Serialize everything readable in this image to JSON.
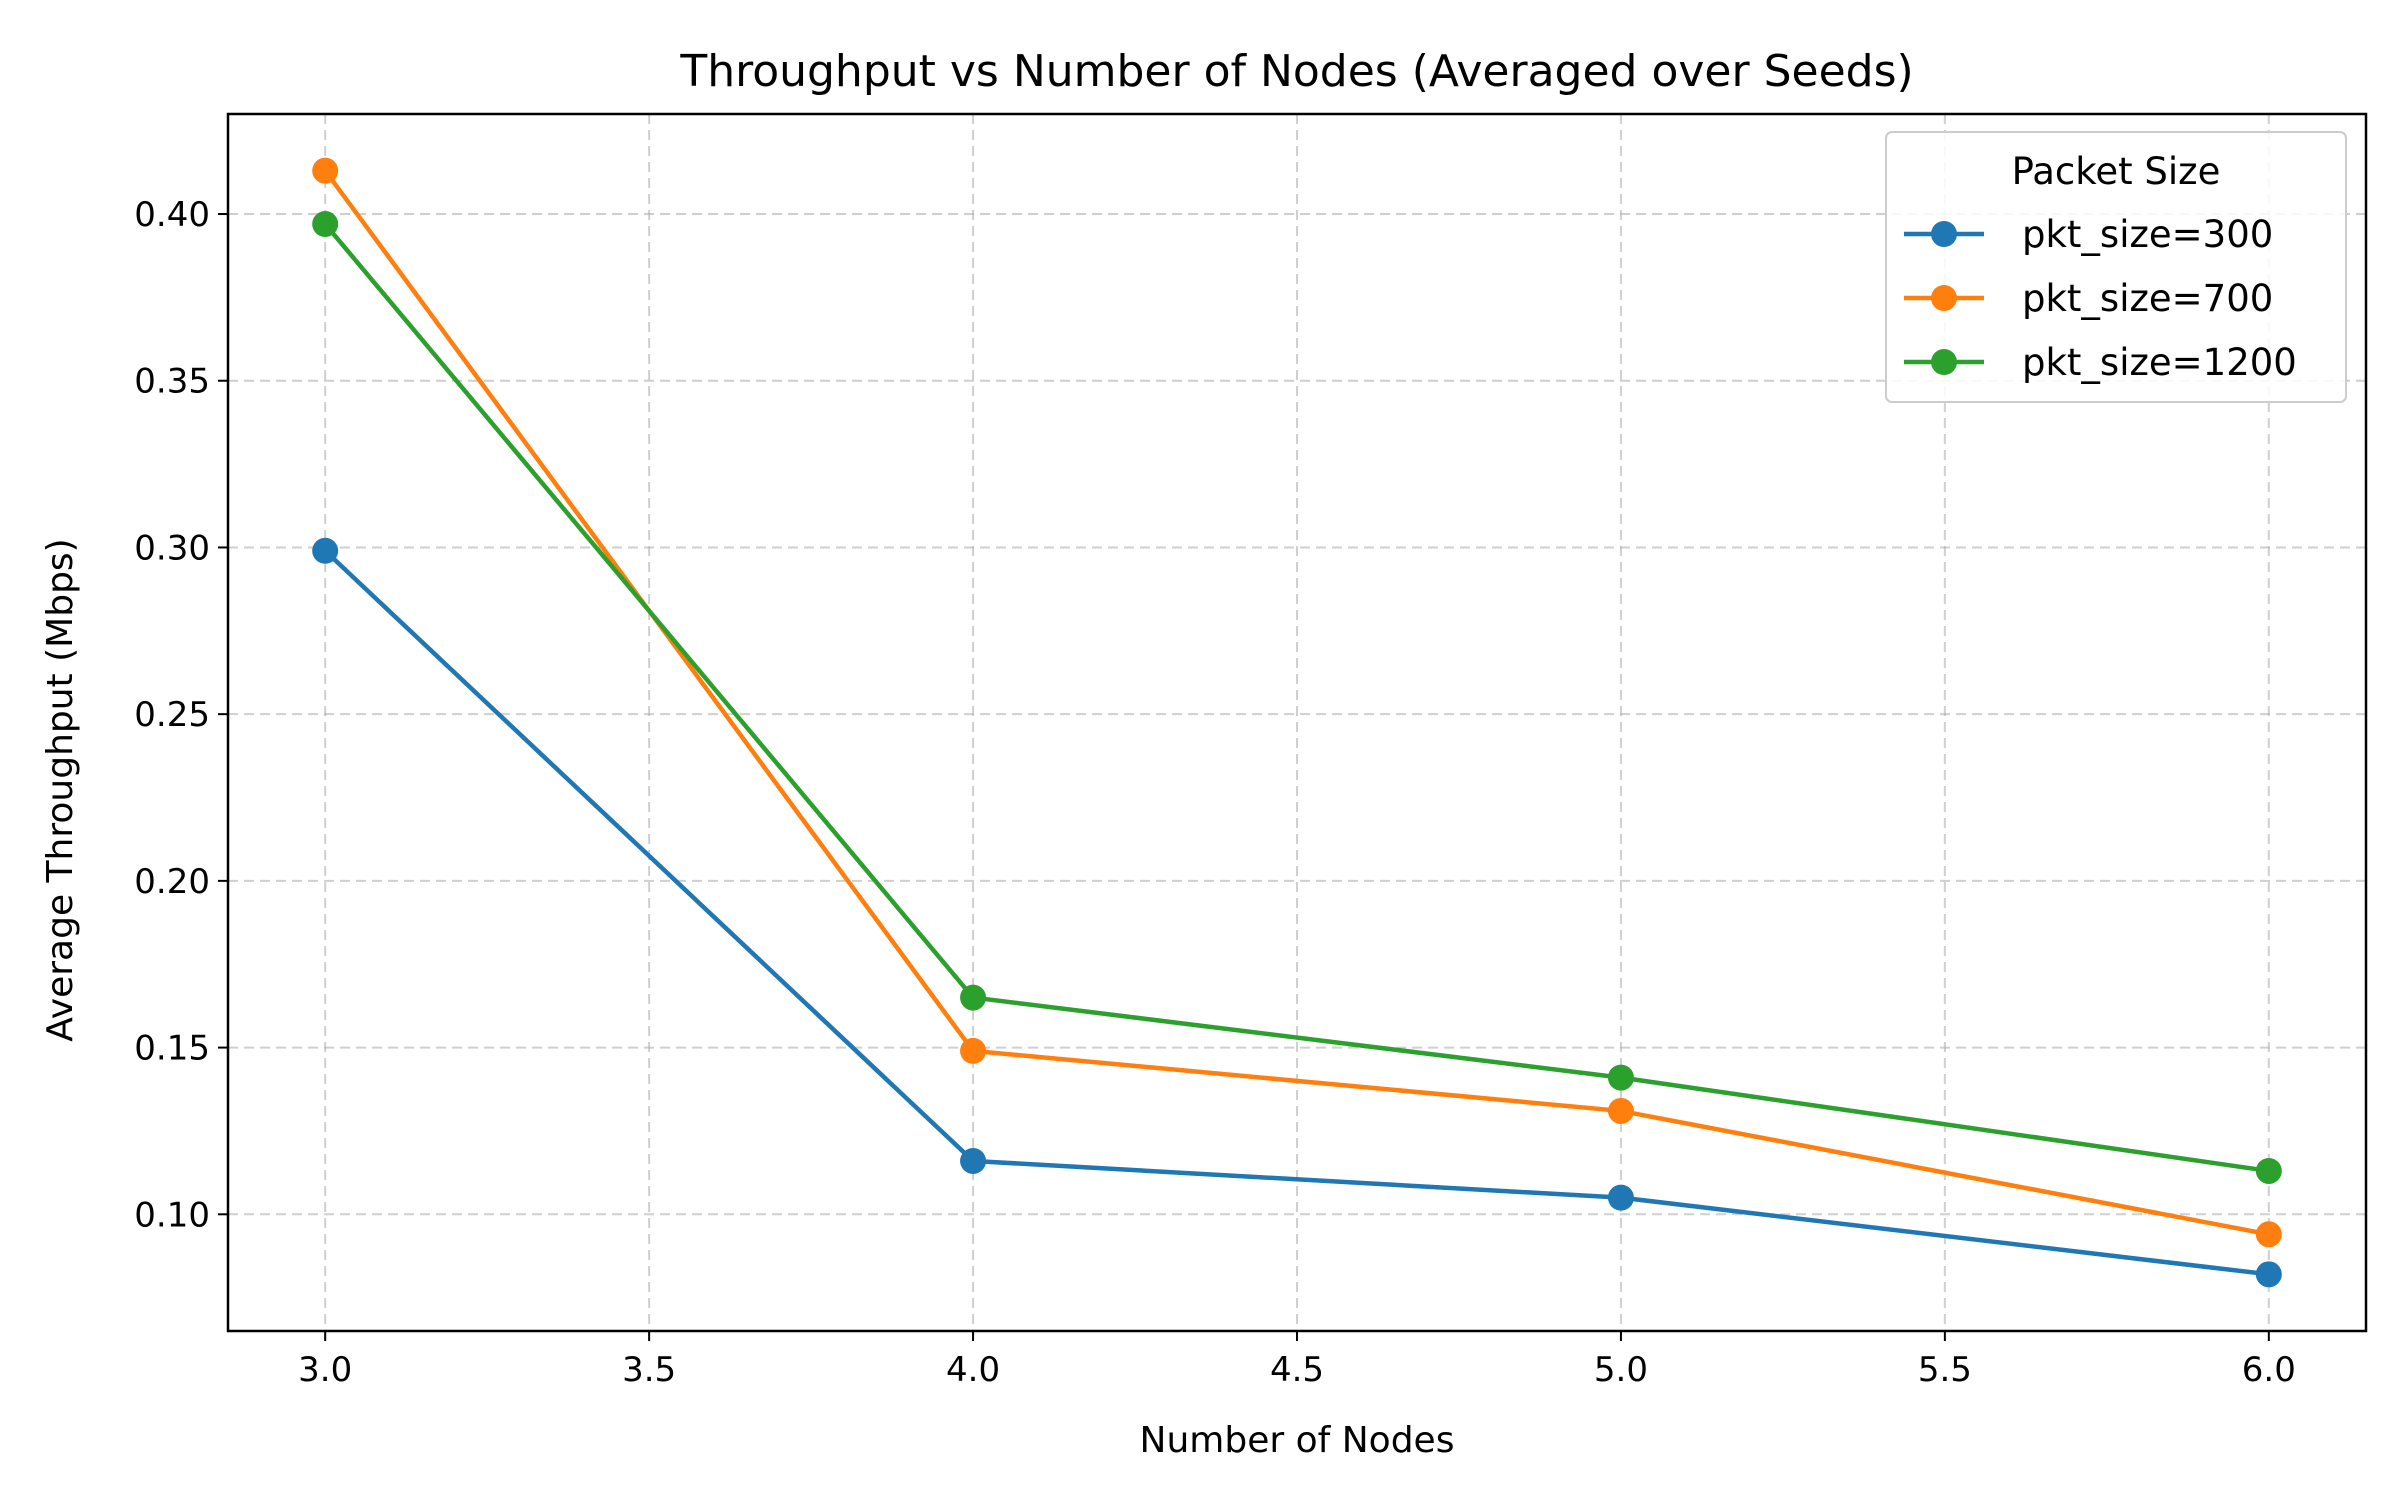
{
  "chart_data": {
    "type": "line",
    "title": "Throughput vs Number of Nodes (Averaged over Seeds)",
    "xlabel": "Number of Nodes",
    "ylabel": "Average Throughput (Mbps)",
    "xlim": [
      2.85,
      6.15
    ],
    "ylim": [
      0.065,
      0.43
    ],
    "xticks": [
      3.0,
      3.5,
      4.0,
      4.5,
      5.0,
      5.5,
      6.0
    ],
    "xtick_labels": [
      "3.0",
      "3.5",
      "4.0",
      "4.5",
      "5.0",
      "5.5",
      "6.0"
    ],
    "yticks": [
      0.1,
      0.15,
      0.2,
      0.25,
      0.3,
      0.35,
      0.4
    ],
    "ytick_labels": [
      "0.10",
      "0.15",
      "0.20",
      "0.25",
      "0.30",
      "0.35",
      "0.40"
    ],
    "grid": true,
    "legend": {
      "title": "Packet Size",
      "placement": "top-right"
    },
    "x": [
      3,
      4,
      5,
      6
    ],
    "series": [
      {
        "name": "pkt_size=300",
        "color": "#1f77b4",
        "values": [
          0.299,
          0.116,
          0.105,
          0.082
        ]
      },
      {
        "name": "pkt_size=700",
        "color": "#ff7f0e",
        "values": [
          0.413,
          0.149,
          0.131,
          0.094
        ]
      },
      {
        "name": "pkt_size=1200",
        "color": "#2ca02c",
        "values": [
          0.397,
          0.165,
          0.141,
          0.113
        ]
      }
    ]
  }
}
